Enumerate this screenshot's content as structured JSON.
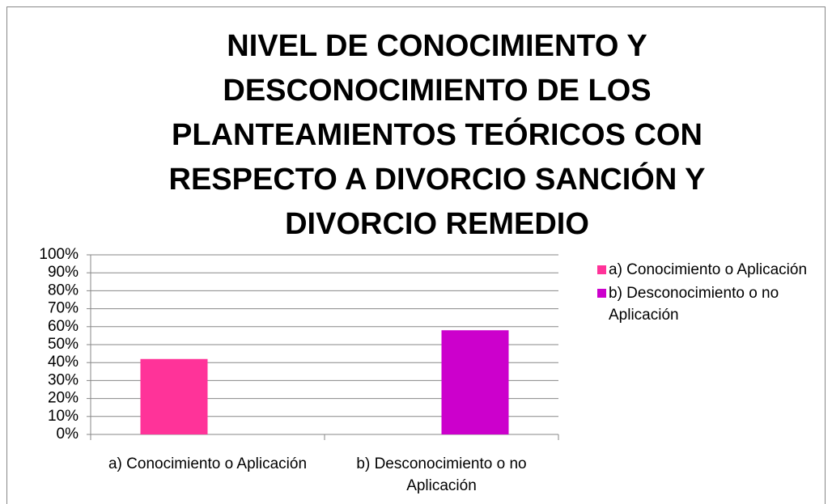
{
  "chart_data": {
    "type": "bar",
    "title": "NIVEL DE CONOCIMIENTO Y DESCONOCIMIENTO DE LOS PLANTEAMIENTOS TEÓRICOS CON RESPECTO A DIVORCIO SANCIÓN Y DIVORCIO REMEDIO",
    "categories": [
      "a) Conocimiento o Aplicación",
      "b) Desconocimiento o no Aplicación"
    ],
    "series": [
      {
        "name": "a) Conocimiento o Aplicación",
        "color": "#ff3399",
        "values": [
          42,
          null
        ]
      },
      {
        "name": "b) Desconocimiento o no Aplicación",
        "color": "#cc00cc",
        "values": [
          null,
          58
        ]
      }
    ],
    "ylim": [
      0,
      100
    ],
    "yticks": [
      {
        "value": 0,
        "label": "0%"
      },
      {
        "value": 10,
        "label": "10%"
      },
      {
        "value": 20,
        "label": "20%"
      },
      {
        "value": 30,
        "label": "30%"
      },
      {
        "value": 40,
        "label": "40%"
      },
      {
        "value": 50,
        "label": "50%"
      },
      {
        "value": 60,
        "label": "60%"
      },
      {
        "value": 70,
        "label": "70%"
      },
      {
        "value": 80,
        "label": "80%"
      },
      {
        "value": 90,
        "label": "90%"
      },
      {
        "value": 100,
        "label": "100%"
      }
    ],
    "grid": true,
    "legend": "right"
  }
}
